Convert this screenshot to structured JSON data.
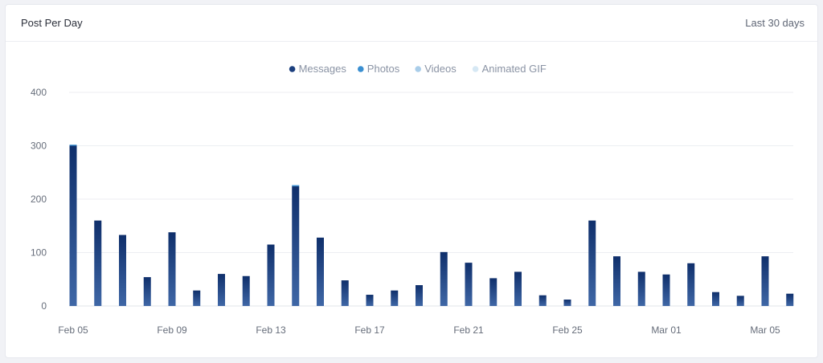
{
  "header": {
    "title": "Post Per Day",
    "range": "Last 30 days"
  },
  "colors": {
    "messages": "#1c3f7e",
    "photos": "#3a8fd1",
    "videos": "#a9cde9",
    "animated_gif": "#d6e8f4",
    "grid": "#eceef2"
  },
  "chart_data": {
    "type": "bar",
    "stacked": true,
    "legend_position": "top-center",
    "grid": true,
    "ylim": [
      0,
      400
    ],
    "y_ticks": [
      0,
      100,
      200,
      300,
      400
    ],
    "x_tick_labels": [
      {
        "index": 0,
        "label": "Feb 05"
      },
      {
        "index": 4,
        "label": "Feb 09"
      },
      {
        "index": 8,
        "label": "Feb 13"
      },
      {
        "index": 12,
        "label": "Feb 17"
      },
      {
        "index": 16,
        "label": "Feb 21"
      },
      {
        "index": 20,
        "label": "Feb 25"
      },
      {
        "index": 24,
        "label": "Mar 01"
      },
      {
        "index": 28,
        "label": "Mar 05"
      }
    ],
    "categories": [
      "Feb 05",
      "Feb 06",
      "Feb 07",
      "Feb 08",
      "Feb 09",
      "Feb 10",
      "Feb 11",
      "Feb 12",
      "Feb 13",
      "Feb 14",
      "Feb 15",
      "Feb 16",
      "Feb 17",
      "Feb 18",
      "Feb 19",
      "Feb 20",
      "Feb 21",
      "Feb 22",
      "Feb 23",
      "Feb 24",
      "Feb 25",
      "Feb 26",
      "Feb 27",
      "Feb 28",
      "Mar 01",
      "Mar 02",
      "Mar 03",
      "Mar 04",
      "Mar 05",
      "Mar 06"
    ],
    "series": [
      {
        "name": "Messages",
        "color": "#1c3f7e",
        "values": [
          300,
          160,
          133,
          54,
          138,
          29,
          60,
          56,
          115,
          224,
          128,
          48,
          21,
          29,
          39,
          101,
          81,
          52,
          64,
          20,
          12,
          160,
          93,
          64,
          59,
          80,
          26,
          19,
          93,
          23
        ]
      },
      {
        "name": "Photos",
        "color": "#3a8fd1",
        "values": [
          2,
          0,
          0,
          0,
          0,
          0,
          0,
          0,
          0,
          2,
          0,
          0,
          0,
          0,
          0,
          0,
          0,
          0,
          0,
          0,
          0,
          0,
          0,
          0,
          0,
          0,
          0,
          0,
          0,
          0
        ]
      },
      {
        "name": "Videos",
        "color": "#a9cde9",
        "values": [
          0,
          0,
          0,
          0,
          0,
          0,
          0,
          0,
          0,
          1,
          0,
          0,
          0,
          0,
          0,
          0,
          0,
          0,
          0,
          0,
          0,
          0,
          0,
          0,
          0,
          0,
          0,
          0,
          0,
          0
        ]
      },
      {
        "name": "Animated GIF",
        "color": "#d6e8f4",
        "values": [
          0,
          0,
          0,
          0,
          0,
          0,
          0,
          0,
          0,
          0,
          0,
          0,
          0,
          0,
          0,
          0,
          0,
          0,
          0,
          0,
          0,
          0,
          0,
          0,
          0,
          0,
          0,
          0,
          0,
          0
        ]
      }
    ]
  }
}
